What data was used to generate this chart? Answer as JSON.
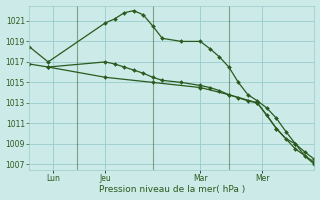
{
  "title": "Pression niveau de la mer( hPa )",
  "bg_color": "#cceae8",
  "grid_color": "#99cccc",
  "line_color": "#2a5a1e",
  "ylim": [
    1006.5,
    1022.5
  ],
  "yticks": [
    1007,
    1009,
    1011,
    1013,
    1015,
    1017,
    1019,
    1021
  ],
  "xlim": [
    0,
    30
  ],
  "xtick_positions": [
    2.5,
    8,
    18,
    24.5
  ],
  "xtick_labels": [
    "Lun",
    "Jeu",
    "Mar",
    "Mer"
  ],
  "vlines": [
    5,
    13,
    21
  ],
  "series": [
    {
      "x": [
        0,
        2,
        8,
        9,
        10,
        11,
        12,
        13,
        14,
        16,
        18,
        19,
        20,
        21,
        22,
        23,
        24,
        25,
        26,
        27,
        28,
        29,
        30
      ],
      "y": [
        1018.5,
        1017.0,
        1020.8,
        1021.2,
        1021.8,
        1022.0,
        1021.6,
        1020.5,
        1019.3,
        1019.0,
        1019.0,
        1018.3,
        1017.5,
        1016.5,
        1015.0,
        1013.8,
        1013.2,
        1012.5,
        1011.5,
        1010.2,
        1009.0,
        1007.8,
        1007.0
      ]
    },
    {
      "x": [
        0,
        2,
        8,
        9,
        10,
        11,
        12,
        13,
        14,
        16,
        18,
        19,
        20,
        21,
        22,
        23,
        24,
        25,
        26,
        27,
        28,
        29,
        30
      ],
      "y": [
        1016.8,
        1016.5,
        1017.0,
        1016.8,
        1016.5,
        1016.2,
        1015.9,
        1015.5,
        1015.2,
        1015.0,
        1014.7,
        1014.5,
        1014.2,
        1013.8,
        1013.5,
        1013.2,
        1013.0,
        1011.8,
        1010.5,
        1009.5,
        1009.0,
        1008.2,
        1007.5
      ]
    },
    {
      "x": [
        2,
        8,
        13,
        18,
        21,
        24,
        26,
        28,
        30
      ],
      "y": [
        1016.5,
        1015.5,
        1015.0,
        1014.5,
        1013.8,
        1013.0,
        1010.5,
        1008.5,
        1007.2
      ]
    }
  ]
}
